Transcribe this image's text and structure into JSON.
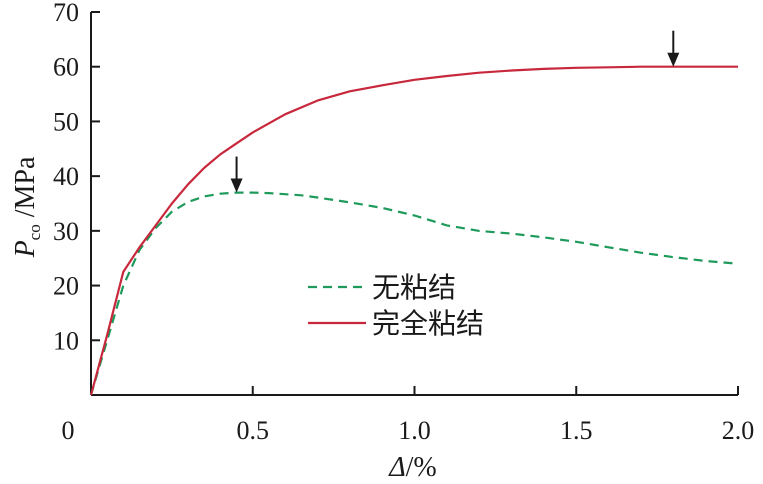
{
  "chart_data": {
    "type": "line",
    "xlabel": {
      "main": "Δ",
      "unit": "/%"
    },
    "ylabel": {
      "main": "P",
      "sub": "co",
      "unit": " /MPa"
    },
    "xlim": [
      0,
      2.0
    ],
    "ylim": [
      0,
      70
    ],
    "x_ticks": [
      0,
      0.5,
      1.0,
      1.5,
      2.0
    ],
    "x_tick_labels": [
      "0",
      "0.5",
      "1.0",
      "1.5",
      "2.0"
    ],
    "y_ticks": [
      10,
      20,
      30,
      40,
      50,
      60,
      70
    ],
    "y_tick_labels": [
      "10",
      "20",
      "30",
      "40",
      "50",
      "60",
      "70"
    ],
    "grid": false,
    "legend_position": "center-right",
    "series": [
      {
        "name": "无粘结",
        "style": "dashed",
        "color": "#1e9a5a",
        "x": [
          0,
          0.05,
          0.1,
          0.15,
          0.2,
          0.25,
          0.3,
          0.35,
          0.4,
          0.45,
          0.5,
          0.55,
          0.6,
          0.65,
          0.7,
          0.8,
          0.9,
          1.0,
          1.1,
          1.2,
          1.3,
          1.4,
          1.5,
          1.6,
          1.7,
          1.8,
          1.9,
          2.0
        ],
        "y": [
          0,
          10,
          20,
          26.5,
          30.5,
          33.5,
          35.3,
          36.3,
          36.8,
          37.0,
          37.0,
          36.9,
          36.7,
          36.5,
          36.1,
          35.2,
          34.2,
          32.8,
          31.0,
          30.0,
          29.5,
          28.8,
          28.0,
          27.0,
          26.0,
          25.2,
          24.5,
          24.0
        ]
      },
      {
        "name": "完全粘结",
        "style": "solid",
        "color": "#c8283c",
        "x": [
          0,
          0.05,
          0.1,
          0.15,
          0.2,
          0.25,
          0.3,
          0.35,
          0.4,
          0.45,
          0.5,
          0.6,
          0.7,
          0.8,
          0.9,
          1.0,
          1.1,
          1.2,
          1.3,
          1.4,
          1.5,
          1.6,
          1.7,
          1.8,
          1.9,
          2.0
        ],
        "y": [
          0,
          11,
          22.5,
          27,
          31,
          35,
          38.5,
          41.5,
          44,
          46,
          48,
          51.3,
          53.8,
          55.5,
          56.6,
          57.6,
          58.3,
          58.9,
          59.3,
          59.6,
          59.8,
          59.9,
          60.0,
          60.0,
          60.0,
          60.0
        ]
      }
    ],
    "annotations": [
      {
        "type": "arrow",
        "x": 0.45,
        "y": 37.0
      },
      {
        "type": "arrow",
        "x": 1.8,
        "y": 60.0
      }
    ]
  }
}
